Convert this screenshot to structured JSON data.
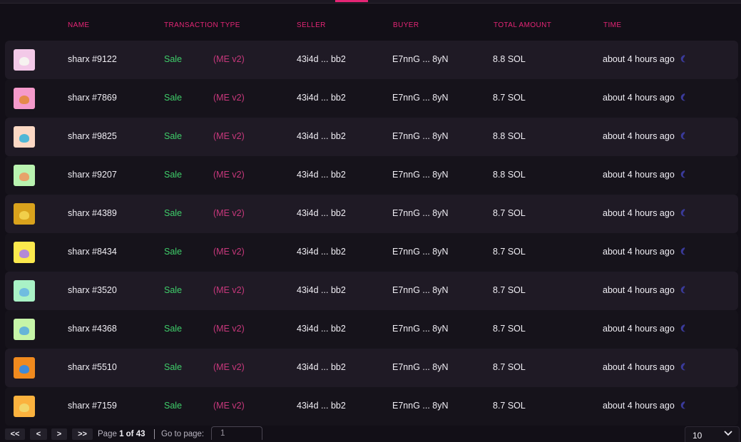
{
  "colors": {
    "accent": "#e42575",
    "sale": "#3fcf6a",
    "marketplace": "#c8387c"
  },
  "header": {
    "name": "NAME",
    "transaction_type": "TRANSACTION TYPE",
    "seller": "SELLER",
    "buyer": "BUYER",
    "total_amount": "TOTAL AMOUNT",
    "time": "TIME"
  },
  "rows": [
    {
      "name": "sharx #9122",
      "type": "Sale",
      "marketplace": "(ME v2)",
      "seller": "43i4d ... bb2",
      "buyer": "E7nnG ... 8yN",
      "amount": "8.8 SOL",
      "time": "about 4 hours ago",
      "thumb_bg": "#f3c9e8",
      "thumb_fg": "#f6f2f0"
    },
    {
      "name": "sharx #7869",
      "type": "Sale",
      "marketplace": "(ME v2)",
      "seller": "43i4d ... bb2",
      "buyer": "E7nnG ... 8yN",
      "amount": "8.7 SOL",
      "time": "about 4 hours ago",
      "thumb_bg": "#f59acb",
      "thumb_fg": "#e58a4a"
    },
    {
      "name": "sharx #9825",
      "type": "Sale",
      "marketplace": "(ME v2)",
      "seller": "43i4d ... bb2",
      "buyer": "E7nnG ... 8yN",
      "amount": "8.8 SOL",
      "time": "about 4 hours ago",
      "thumb_bg": "#fbd8c4",
      "thumb_fg": "#4fb7d6"
    },
    {
      "name": "sharx #9207",
      "type": "Sale",
      "marketplace": "(ME v2)",
      "seller": "43i4d ... bb2",
      "buyer": "E7nnG ... 8yN",
      "amount": "8.8 SOL",
      "time": "about 4 hours ago",
      "thumb_bg": "#b9f3b0",
      "thumb_fg": "#e7a36a"
    },
    {
      "name": "sharx #4389",
      "type": "Sale",
      "marketplace": "(ME v2)",
      "seller": "43i4d ... bb2",
      "buyer": "E7nnG ... 8yN",
      "amount": "8.7 SOL",
      "time": "about 4 hours ago",
      "thumb_bg": "#d9a21c",
      "thumb_fg": "#f1cf4a"
    },
    {
      "name": "sharx #8434",
      "type": "Sale",
      "marketplace": "(ME v2)",
      "seller": "43i4d ... bb2",
      "buyer": "E7nnG ... 8yN",
      "amount": "8.7 SOL",
      "time": "about 4 hours ago",
      "thumb_bg": "#fbe94d",
      "thumb_fg": "#b48ad6"
    },
    {
      "name": "sharx #3520",
      "type": "Sale",
      "marketplace": "(ME v2)",
      "seller": "43i4d ... bb2",
      "buyer": "E7nnG ... 8yN",
      "amount": "8.7 SOL",
      "time": "about 4 hours ago",
      "thumb_bg": "#a9f2c6",
      "thumb_fg": "#6fbde0"
    },
    {
      "name": "sharx #4368",
      "type": "Sale",
      "marketplace": "(ME v2)",
      "seller": "43i4d ... bb2",
      "buyer": "E7nnG ... 8yN",
      "amount": "8.7 SOL",
      "time": "about 4 hours ago",
      "thumb_bg": "#c6f5a8",
      "thumb_fg": "#66b5d8"
    },
    {
      "name": "sharx #5510",
      "type": "Sale",
      "marketplace": "(ME v2)",
      "seller": "43i4d ... bb2",
      "buyer": "E7nnG ... 8yN",
      "amount": "8.7 SOL",
      "time": "about 4 hours ago",
      "thumb_bg": "#f08a1e",
      "thumb_fg": "#3f8ad8"
    },
    {
      "name": "sharx #7159",
      "type": "Sale",
      "marketplace": "(ME v2)",
      "seller": "43i4d ... bb2",
      "buyer": "E7nnG ... 8yN",
      "amount": "8.7 SOL",
      "time": "about 4 hours ago",
      "thumb_bg": "#fbb23e",
      "thumb_fg": "#f2d66a"
    }
  ],
  "pager": {
    "first": "<<",
    "prev": "<",
    "next": ">",
    "last": ">>",
    "page_prefix": "Page",
    "page_current_of": "1 of 43",
    "goto_label": "Go to page:",
    "goto_value": "1",
    "page_size": "10"
  }
}
